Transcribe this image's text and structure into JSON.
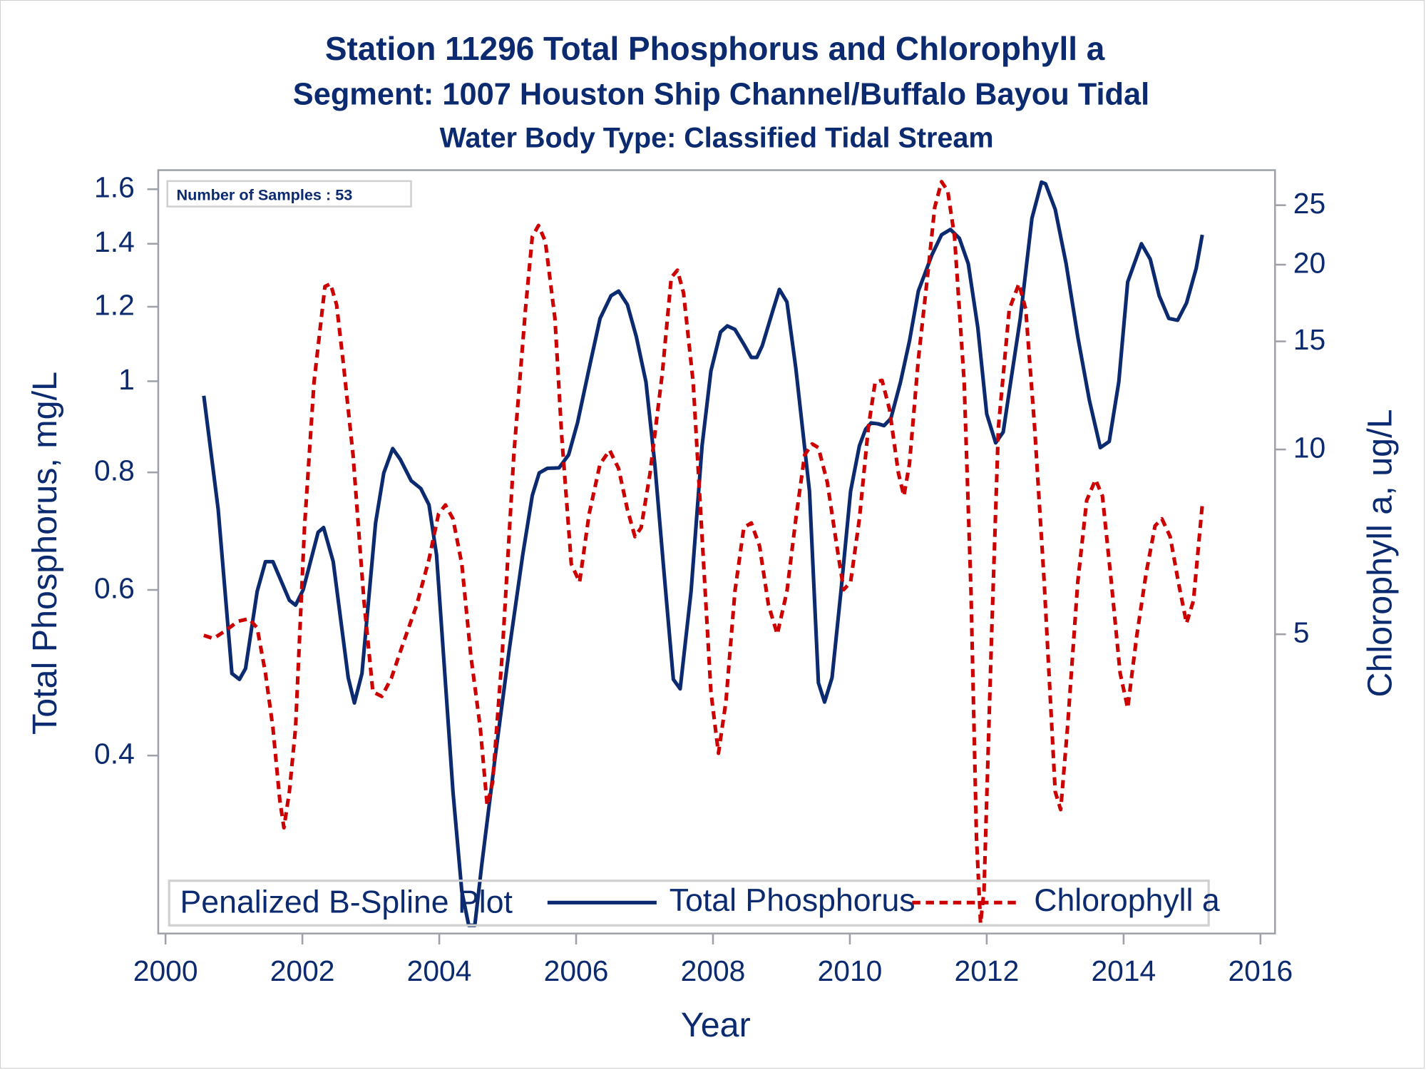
{
  "chart_data": {
    "type": "line",
    "titles": [
      "Station 11296  Total Phosphorus and Chlorophyll a",
      "Segment: 1007  Houston Ship Channel/Buffalo Bayou Tidal",
      "Water Body Type: Classified Tidal Stream"
    ],
    "inset": "Number of Samples : 53",
    "xlabel": "Year",
    "ylabel": "Total Phosphorus, mg/L",
    "y2label": "Chlorophyll a, ug/L",
    "x_ticks": [
      "2000",
      "2002",
      "2004",
      "2006",
      "2008",
      "2010",
      "2012",
      "2014",
      "2016"
    ],
    "x_tick_values": [
      2000,
      2002,
      2004,
      2006,
      2008,
      2010,
      2012,
      2014,
      2016
    ],
    "xlim": [
      1999.9,
      2016.2
    ],
    "y_scale": "log",
    "y_ticks": [
      "1.6",
      "1.4",
      "1.2",
      "1",
      "0.8",
      "0.6",
      "0.4"
    ],
    "y_tick_values": [
      1.6,
      1.4,
      1.2,
      1.0,
      0.8,
      0.6,
      0.4
    ],
    "ylim": [
      0.264,
      1.66
    ],
    "y2_scale": "log",
    "y2_ticks": [
      "25",
      "20",
      "15",
      "10",
      "5"
    ],
    "y2_tick_values": [
      25,
      20,
      15,
      10,
      5
    ],
    "y2lim": [
      1.69,
      28.0
    ],
    "grid": false,
    "legend": {
      "title": "Penalized B-Spline Plot",
      "placement": "bottom-inside",
      "entries": [
        "Total Phosphorus",
        "Chlorophyll a"
      ]
    },
    "series": [
      {
        "name": "Total Phosphorus",
        "axis": "left",
        "color": "#0b2a6f",
        "style": "solid",
        "x": [
          2000.56,
          2000.77,
          2000.97,
          2001.08,
          2001.17,
          2001.34,
          2001.46,
          2001.57,
          2001.81,
          2001.9,
          2002.01,
          2002.23,
          2002.31,
          2002.45,
          2002.67,
          2002.76,
          2002.87,
          2003.07,
          2003.19,
          2003.32,
          2003.43,
          2003.59,
          2003.73,
          2003.85,
          2003.96,
          2004.09,
          2004.2,
          2004.33,
          2004.43,
          2004.52,
          2004.62,
          2004.82,
          2005.02,
          2005.22,
          2005.36,
          2005.46,
          2005.58,
          2005.75,
          2005.89,
          2006.02,
          2006.19,
          2006.35,
          2006.51,
          2006.62,
          2006.75,
          2006.88,
          2007.02,
          2007.15,
          2007.28,
          2007.42,
          2007.52,
          2007.68,
          2007.84,
          2007.97,
          2008.11,
          2008.21,
          2008.32,
          2008.45,
          2008.56,
          2008.64,
          2008.72,
          2008.88,
          2008.97,
          2009.08,
          2009.21,
          2009.41,
          2009.54,
          2009.63,
          2009.74,
          2009.87,
          2010.01,
          2010.14,
          2010.23,
          2010.31,
          2010.41,
          2010.5,
          2010.6,
          2010.74,
          2010.87,
          2011.0,
          2011.2,
          2011.34,
          2011.47,
          2011.6,
          2011.73,
          2011.87,
          2012.0,
          2012.13,
          2012.24,
          2012.33,
          2012.49,
          2012.66,
          2012.8,
          2012.86,
          2013.0,
          2013.16,
          2013.33,
          2013.5,
          2013.66,
          2013.79,
          2013.93,
          2014.06,
          2014.26,
          2014.39,
          2014.52,
          2014.66,
          2014.79,
          2014.92,
          2015.06,
          2015.15
        ],
        "y": [
          0.965,
          0.731,
          0.489,
          0.482,
          0.495,
          0.598,
          0.643,
          0.643,
          0.585,
          0.578,
          0.6,
          0.691,
          0.699,
          0.643,
          0.484,
          0.455,
          0.489,
          0.707,
          0.799,
          0.848,
          0.826,
          0.784,
          0.769,
          0.739,
          0.654,
          0.478,
          0.366,
          0.287,
          0.264,
          0.264,
          0.306,
          0.4,
          0.517,
          0.654,
          0.756,
          0.799,
          0.808,
          0.809,
          0.835,
          0.903,
          1.032,
          1.166,
          1.233,
          1.247,
          1.206,
          1.115,
          0.998,
          0.817,
          0.632,
          0.482,
          0.471,
          0.598,
          0.854,
          1.025,
          1.128,
          1.145,
          1.135,
          1.095,
          1.06,
          1.06,
          1.091,
          1.192,
          1.252,
          1.214,
          1.032,
          0.764,
          0.478,
          0.456,
          0.484,
          0.598,
          0.764,
          0.854,
          0.889,
          0.903,
          0.901,
          0.897,
          0.913,
          0.998,
          1.103,
          1.247,
          1.363,
          1.431,
          1.45,
          1.419,
          1.333,
          1.14,
          0.923,
          0.86,
          0.883,
          0.976,
          1.166,
          1.49,
          1.628,
          1.621,
          1.523,
          1.333,
          1.115,
          0.954,
          0.85,
          0.863,
          0.998,
          1.275,
          1.4,
          1.348,
          1.233,
          1.166,
          1.161,
          1.211,
          1.318,
          1.431
        ]
      },
      {
        "name": "Chlorophyll a",
        "axis": "right",
        "color": "#cc0000",
        "style": "dashed",
        "x": [
          2000.56,
          2000.7,
          2000.88,
          2001.06,
          2001.22,
          2001.34,
          2001.46,
          2001.57,
          2001.67,
          2001.73,
          2001.81,
          2001.9,
          2002.03,
          2002.17,
          2002.33,
          2002.41,
          2002.5,
          2002.6,
          2002.74,
          2002.9,
          2003.03,
          2003.16,
          2003.3,
          2003.46,
          2003.67,
          2003.85,
          2003.99,
          2004.09,
          2004.2,
          2004.33,
          2004.46,
          2004.6,
          2004.7,
          2004.78,
          2004.92,
          2005.09,
          2005.26,
          2005.36,
          2005.45,
          2005.55,
          2005.69,
          2005.79,
          2005.93,
          2006.05,
          2006.19,
          2006.35,
          2006.49,
          2006.62,
          2006.75,
          2006.86,
          2006.95,
          2007.08,
          2007.26,
          2007.39,
          2007.48,
          2007.57,
          2007.71,
          2007.84,
          2007.97,
          2008.08,
          2008.19,
          2008.32,
          2008.45,
          2008.56,
          2008.68,
          2008.81,
          2008.94,
          2009.08,
          2009.21,
          2009.34,
          2009.45,
          2009.54,
          2009.67,
          2009.81,
          2009.91,
          2010.01,
          2010.14,
          2010.27,
          2010.37,
          2010.47,
          2010.58,
          2010.71,
          2010.79,
          2010.87,
          2011.0,
          2011.14,
          2011.24,
          2011.34,
          2011.43,
          2011.53,
          2011.67,
          2011.77,
          2011.85,
          2011.91,
          2011.96,
          2012.07,
          2012.17,
          2012.33,
          2012.47,
          2012.57,
          2012.7,
          2012.84,
          2013.0,
          2013.08,
          2013.18,
          2013.33,
          2013.46,
          2013.59,
          2013.69,
          2013.82,
          2013.95,
          2014.06,
          2014.19,
          2014.33,
          2014.46,
          2014.56,
          2014.68,
          2014.8,
          2014.92,
          2015.02,
          2015.15
        ],
        "y": [
          4.98,
          4.92,
          5.07,
          5.25,
          5.3,
          5.12,
          4.32,
          3.52,
          2.68,
          2.42,
          2.77,
          3.52,
          7.46,
          12.87,
          18.43,
          18.62,
          17.21,
          13.79,
          9.8,
          5.67,
          4.03,
          3.96,
          4.24,
          4.79,
          5.58,
          6.62,
          7.85,
          8.12,
          7.71,
          6.51,
          4.63,
          3.52,
          2.63,
          2.87,
          4.63,
          9.8,
          16.92,
          22.22,
          23.17,
          21.84,
          16.35,
          10.49,
          6.51,
          6.08,
          7.85,
          9.47,
          9.97,
          9.31,
          7.98,
          7.21,
          7.46,
          9.15,
          13.32,
          19.06,
          19.59,
          17.99,
          12.87,
          7.21,
          4.03,
          3.2,
          3.89,
          5.87,
          7.46,
          7.59,
          6.96,
          5.58,
          5.0,
          5.87,
          7.71,
          9.8,
          10.21,
          10.07,
          8.84,
          6.96,
          5.91,
          6.08,
          7.71,
          10.85,
          12.87,
          12.96,
          11.62,
          9.15,
          8.4,
          9.47,
          14.02,
          19.39,
          24.79,
          27.3,
          26.38,
          22.22,
          12.87,
          5.87,
          2.34,
          1.69,
          1.91,
          4.95,
          10.85,
          16.92,
          18.62,
          16.92,
          10.85,
          6.08,
          2.77,
          2.59,
          3.52,
          6.08,
          8.26,
          8.93,
          8.4,
          6.08,
          4.32,
          3.79,
          4.95,
          6.29,
          7.51,
          7.71,
          7.21,
          6.08,
          5.21,
          5.67,
          8.12
        ]
      }
    ]
  }
}
